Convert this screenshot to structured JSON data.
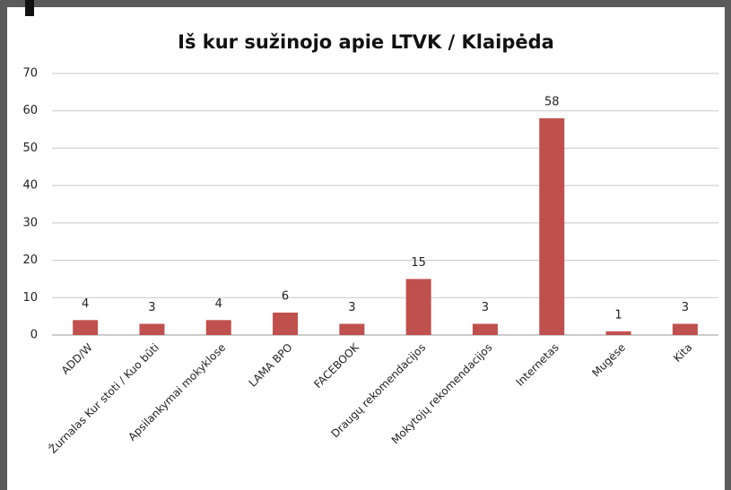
{
  "chart_data": {
    "type": "bar",
    "title": "Iš kur sužinojo apie LTVK / Klaipėda",
    "categories": [
      "ADD/W",
      "Žurnalas Kur stoti / Kuo būti",
      "Apsilankymai mokyklose",
      "LAMA BPO",
      "FACEBOOK",
      "Draugų rekomendacijos",
      "Mokytojų rekomendacijos",
      "Internetas",
      "Mugėse",
      "Kita"
    ],
    "values": [
      4,
      3,
      4,
      6,
      3,
      15,
      3,
      58,
      1,
      3
    ],
    "color": "#c0504d",
    "ylim": [
      0,
      70
    ],
    "yticks": [
      0,
      10,
      20,
      30,
      40,
      50,
      60,
      70
    ],
    "grid": true
  }
}
